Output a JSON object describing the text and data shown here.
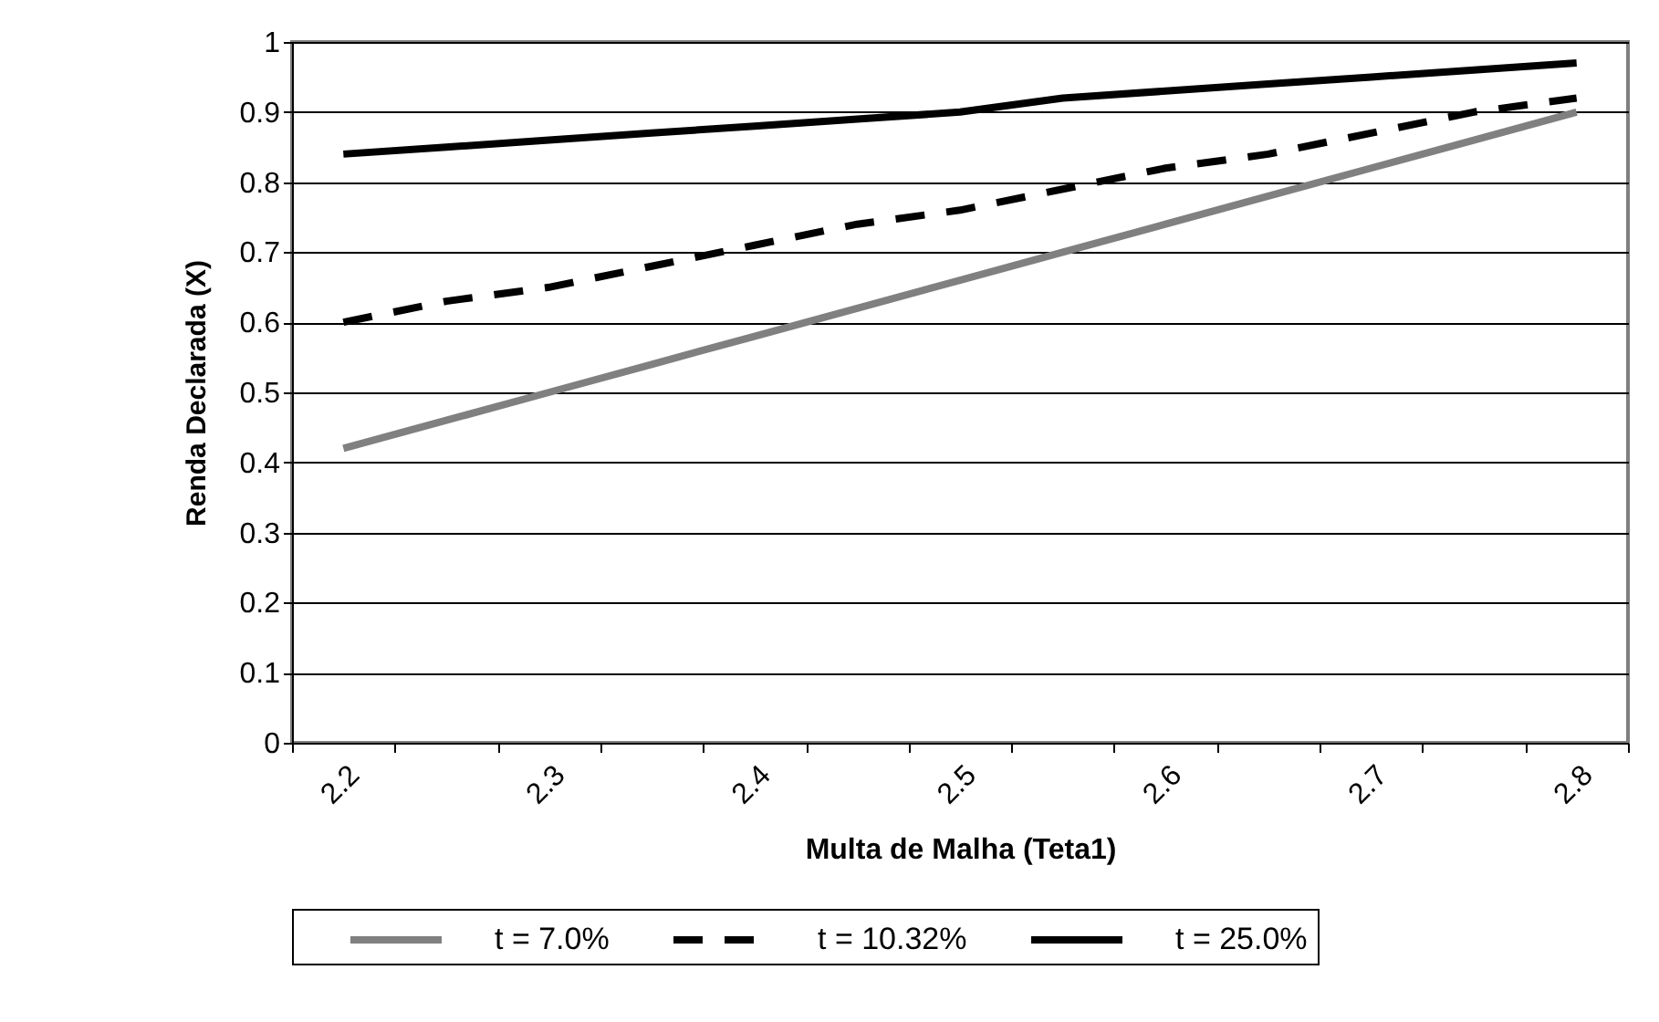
{
  "chart_data": {
    "type": "line",
    "xlabel": "Multa de Malha (Teta1)",
    "ylabel": "Renda Declarada (X)",
    "categories": [
      "2.2",
      null,
      "2.3",
      null,
      "2.4",
      null,
      "2.5",
      null,
      "2.6",
      null,
      "2.7",
      null,
      "2.8"
    ],
    "series": [
      {
        "name": "t = 7.0%",
        "color": "#808080",
        "line_style": "solid",
        "values": [
          0.42,
          0.46,
          0.5,
          0.54,
          0.58,
          0.62,
          0.66,
          0.7,
          0.74,
          0.78,
          0.82,
          0.86,
          0.9
        ]
      },
      {
        "name": "t = 10.32%",
        "color": "#000000",
        "line_style": "dashed",
        "values": [
          0.6,
          0.63,
          0.65,
          0.68,
          0.71,
          0.74,
          0.76,
          0.79,
          0.82,
          0.84,
          0.87,
          0.9,
          0.92
        ]
      },
      {
        "name": "t = 25.0%",
        "color": "#000000",
        "line_style": "solid",
        "values": [
          0.84,
          0.85,
          0.86,
          0.87,
          0.88,
          0.89,
          0.9,
          0.92,
          0.93,
          0.94,
          0.95,
          0.96,
          0.97
        ]
      }
    ],
    "ylim": [
      0,
      1
    ],
    "yticks": [
      0,
      0.1,
      0.2,
      0.3,
      0.4,
      0.5,
      0.6,
      0.7,
      0.8,
      0.9,
      1
    ],
    "grid": "y",
    "legend": "bottom",
    "marker": "none"
  }
}
